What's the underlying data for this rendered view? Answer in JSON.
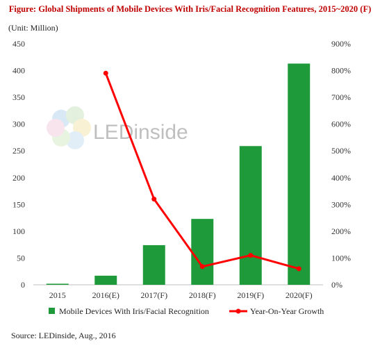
{
  "figure": {
    "title": "Figure: Global Shipments of Mobile Devices With Iris/Facial Recognition Features, 2015~2020 (F)",
    "unit": "(Unit: Million)",
    "source": "Source: LEDinside, Aug., 2016",
    "watermark": "LEDinside"
  },
  "chart_data": {
    "type": "bar",
    "title": "Figure: Global Shipments of Mobile Devices With Iris/Facial Recognition Features, 2015~2020 (F)",
    "categories": [
      "2015",
      "2016(E)",
      "2017(F)",
      "2018(F)",
      "2019(F)",
      "2020(F)"
    ],
    "y_left": {
      "ticks": [
        "0",
        "50",
        "100",
        "150",
        "200",
        "250",
        "300",
        "350",
        "400",
        "450"
      ],
      "ylim": [
        0,
        450
      ]
    },
    "y_right": {
      "ticks": [
        "0%",
        "100%",
        "200%",
        "300%",
        "400%",
        "500%",
        "600%",
        "700%",
        "800%",
        "900%"
      ],
      "ylim": [
        0,
        900
      ]
    },
    "series": [
      {
        "name": "Mobile Devices With Iris/Facial Recognition",
        "type": "bar",
        "axis": "left",
        "color": "#1e9a3a",
        "values": [
          2,
          17,
          74,
          123,
          259,
          413
        ]
      },
      {
        "name": "Year-On-Year Growth",
        "type": "line",
        "axis": "right",
        "color": "#ff0000",
        "unit": "%",
        "values": [
          null,
          790,
          320,
          68,
          110,
          60
        ]
      }
    ],
    "legend_position": "bottom",
    "grid": false
  }
}
